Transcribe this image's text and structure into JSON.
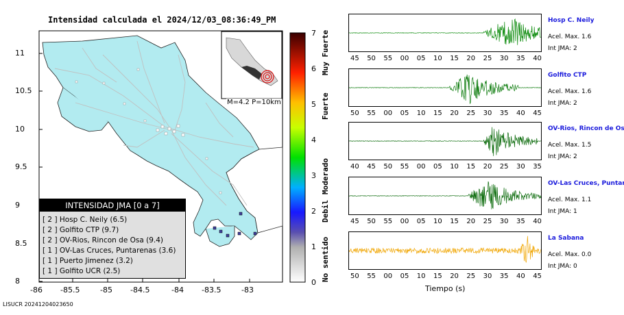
{
  "map": {
    "title": "Intensidad calculada el 2024/12/03_08:36:49_PM",
    "x_ticks": [
      "-86",
      "-85.5",
      "-85",
      "-84.5",
      "-84",
      "-83.5",
      "-83"
    ],
    "y_ticks": [
      "11",
      "10.5",
      "10",
      "9.5",
      "9",
      "8.5",
      "8"
    ],
    "inset_label": "M=4.2 P=10km",
    "land_color": "#b2ebf0",
    "epicenter_color": "#e01010"
  },
  "legend": {
    "title": "INTENSIDAD JMA [0 a 7]",
    "items": [
      "[ 2 ]  Hosp C. Neily (6.5)",
      "[ 2 ]  Golfito CTP (9.7)",
      "[ 2 ]  OV-Rios, Rincon de Osa (9.4)",
      "[ 1 ]  OV-Las Cruces, Puntarenas (3.6)",
      "[ 1 ]  Puerto Jimenez (3.2)",
      "[ 1 ]  Golfito UCR (2.5)"
    ]
  },
  "colorbar": {
    "ticks": [
      "7",
      "6",
      "5",
      "4",
      "3",
      "2",
      "1",
      "0"
    ],
    "labels": [
      "Muy Fuerte",
      "Fuerte",
      "Moderado",
      "Debil",
      "No sentido"
    ]
  },
  "stations": [
    {
      "name": "Hosp C. Neily",
      "acc": "Acel. Max. 1.6",
      "int": "Int JMA: 2",
      "color": "#0a8a0a",
      "ticks": [
        "45",
        "50",
        "55",
        "00",
        "05",
        "10",
        "15",
        "20",
        "25",
        "30",
        "35",
        "40"
      ],
      "onset": 0.7,
      "peak": 0.85,
      "end": 1.0
    },
    {
      "name": "Golfito CTP",
      "acc": "Acel. Max. 1.6",
      "int": "Int JMA: 2",
      "color": "#0a7a0a",
      "ticks": [
        "50",
        "55",
        "00",
        "05",
        "10",
        "15",
        "20",
        "25",
        "30",
        "35",
        "40",
        "45"
      ],
      "onset": 0.52,
      "peak": 0.63,
      "end": 0.88
    },
    {
      "name": "OV-Rios, Rincon de Os",
      "acc": "Acel. Max. 1.5",
      "int": "Int JMA: 2",
      "color": "#0a6a0a",
      "ticks": [
        "40",
        "45",
        "50",
        "55",
        "00",
        "05",
        "10",
        "15",
        "20",
        "25",
        "30",
        "35"
      ],
      "onset": 0.7,
      "peak": 0.75,
      "end": 0.98
    },
    {
      "name": "OV-Las Cruces, Puntar",
      "acc": "Acel. Max. 1.1",
      "int": "Int JMA: 1",
      "color": "#0a6a0a",
      "ticks": [
        "45",
        "50",
        "55",
        "00",
        "05",
        "10",
        "15",
        "20",
        "25",
        "30",
        "35",
        "40"
      ],
      "onset": 0.62,
      "peak": 0.72,
      "end": 1.0
    },
    {
      "name": "La Sabana",
      "acc": "Acel. Max. 0.0",
      "int": "Int JMA: 0",
      "color": "#f0a500",
      "ticks": [
        "50",
        "55",
        "00",
        "05",
        "10",
        "15",
        "20",
        "25",
        "30",
        "35",
        "40",
        "45"
      ],
      "onset": 0.0,
      "peak": 0.93,
      "end": 1.0
    }
  ],
  "time_axis_label": "Tiempo (s)",
  "footer": "LISUCR 20241204023650"
}
